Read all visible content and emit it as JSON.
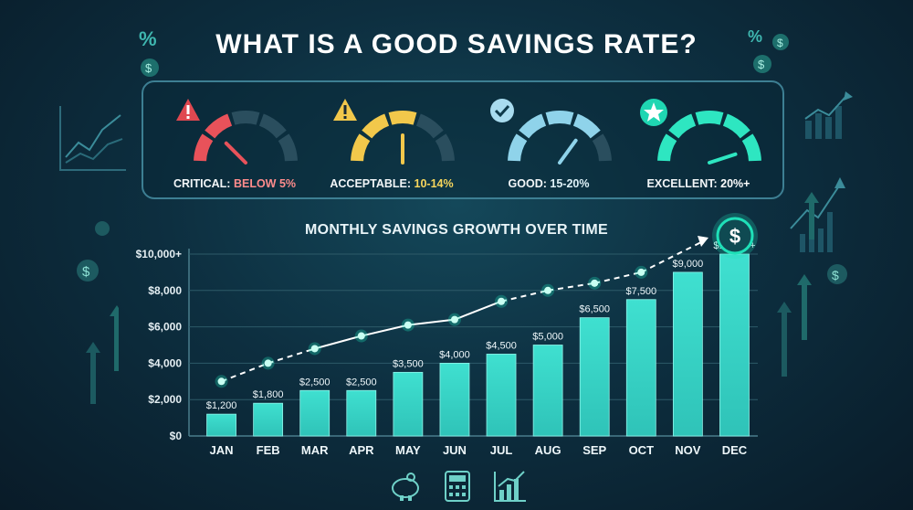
{
  "title": "WHAT IS A GOOD SAVINGS RATE?",
  "gauges": [
    {
      "key": "CRITICAL:",
      "value": "BELOW 5%",
      "color": "#e8525a",
      "value_color": "#ff8c8c",
      "level": 0.25,
      "icon": "warning-icon"
    },
    {
      "key": "ACCEPTABLE:",
      "value": "10-14%",
      "color": "#f2c84b",
      "value_color": "#f7d65c",
      "level": 0.5,
      "icon": "warning-icon"
    },
    {
      "key": "GOOD:",
      "value": "15-20%",
      "color": "#8fd3ea",
      "value_color": "#dff2f8",
      "level": 0.7,
      "icon": "check-icon"
    },
    {
      "key": "EXCELLENT:",
      "value": "20%+",
      "color": "#2ee6c1",
      "value_color": "#ffffff",
      "level": 0.9,
      "icon": "star-icon"
    }
  ],
  "chart_data": {
    "type": "bar",
    "title": "MONTHLY SAVINGS GROWTH OVER TIME",
    "categories": [
      "JAN",
      "FEB",
      "MAR",
      "APR",
      "MAY",
      "JUN",
      "JUL",
      "AUG",
      "SEP",
      "OCT",
      "NOV",
      "DEC"
    ],
    "values": [
      1200,
      1800,
      2500,
      2500,
      3500,
      4000,
      4500,
      5000,
      6500,
      7500,
      9000,
      10000
    ],
    "data_labels": [
      "$1,200",
      "$1,800",
      "$2,500",
      "$2,500",
      "$3,500",
      "$4,000",
      "$4,500",
      "$5,000",
      "$6,500",
      "$7,500",
      "$9,000",
      "$10,000+"
    ],
    "trend_line": [
      3000,
      4000,
      4800,
      5500,
      6100,
      6400,
      7400,
      8000,
      8400,
      9000,
      null,
      null
    ],
    "yticks": [
      "$0",
      "$2,000",
      "$4,000",
      "$6,000",
      "$8,000",
      "$10,000+"
    ],
    "ylim": [
      0,
      10000
    ],
    "grid": true,
    "colors": {
      "bar_low": "#2fc3b8",
      "bar_high": "#3fe0d0",
      "trend": "#ffffff",
      "accent": "#1fe0b8"
    }
  },
  "footer_icons": [
    "piggy-bank-icon",
    "calculator-icon",
    "growth-chart-icon"
  ]
}
